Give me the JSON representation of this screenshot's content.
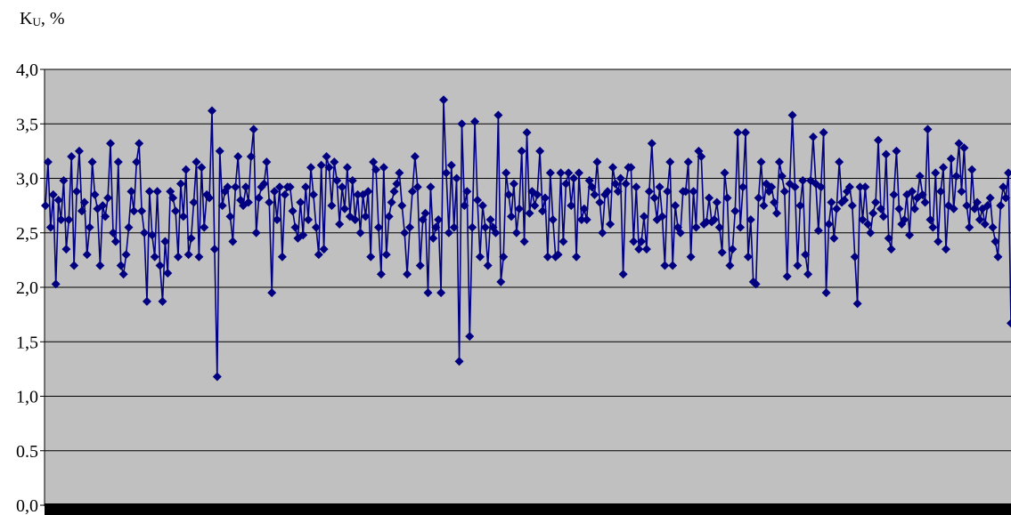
{
  "chart_data": {
    "type": "line",
    "ylabel": "K",
    "ylabel_subscript": "U",
    "ylabel_suffix": ", %",
    "ylim": [
      0,
      4
    ],
    "ytick_labels": [
      "0,0",
      "0.5",
      "1,0",
      "1,5",
      "2,0",
      "2,5",
      "3,0",
      "3,5",
      "4,0"
    ],
    "ytick_values": [
      0,
      0.5,
      1,
      1.5,
      2,
      2.5,
      3,
      3.5,
      4
    ],
    "grid": true,
    "plot_background": "#c0c0c0",
    "series_color": "#000080",
    "baseline_color": "#000000",
    "series": [
      {
        "values": [
          2.75,
          3.15,
          2.55,
          2.85,
          2.03,
          2.8,
          2.62,
          2.98,
          2.35,
          2.62,
          3.2,
          2.2,
          2.88,
          3.25,
          2.7,
          2.78,
          2.3,
          2.55,
          3.15,
          2.85,
          2.72,
          2.2,
          2.75,
          2.65,
          2.82,
          3.32,
          2.5,
          2.42,
          3.15,
          2.2,
          2.12,
          2.3,
          2.55,
          2.88,
          2.7,
          3.15,
          3.32,
          2.7,
          2.5,
          1.87,
          2.88,
          2.48,
          2.28,
          2.88,
          2.2,
          1.87,
          2.42,
          2.13,
          2.88,
          2.82,
          2.7,
          2.28,
          2.95,
          2.65,
          3.08,
          2.3,
          2.45,
          2.78,
          3.15,
          2.28,
          3.1,
          2.55,
          2.85,
          2.82,
          3.62,
          2.35,
          1.18,
          3.25,
          2.75,
          2.88,
          2.92,
          2.65,
          2.42,
          2.92,
          3.2,
          2.8,
          2.75,
          2.92,
          2.78,
          3.2,
          3.45,
          2.5,
          2.82,
          2.92,
          2.95,
          3.15,
          2.78,
          1.95,
          2.88,
          2.62,
          2.92,
          2.28,
          2.85,
          2.92,
          2.92,
          2.7,
          2.55,
          2.45,
          2.78,
          2.48,
          2.92,
          2.62,
          3.1,
          2.85,
          2.55,
          2.3,
          3.12,
          2.35,
          3.2,
          3.1,
          2.75,
          3.15,
          2.98,
          2.58,
          2.92,
          2.72,
          3.1,
          2.65,
          2.98,
          2.62,
          2.85,
          2.5,
          2.85,
          2.65,
          2.88,
          2.28,
          3.15,
          3.08,
          2.55,
          2.12,
          3.1,
          2.3,
          2.65,
          2.78,
          2.88,
          2.95,
          3.05,
          2.75,
          2.5,
          2.12,
          2.55,
          2.88,
          3.2,
          2.92,
          2.2,
          2.62,
          2.68,
          1.95,
          2.92,
          2.45,
          2.55,
          2.62,
          1.95,
          3.72,
          3.05,
          2.5,
          3.12,
          2.55,
          3.0,
          1.32,
          3.5,
          2.75,
          2.88,
          1.55,
          2.55,
          3.52,
          2.8,
          2.28,
          2.75,
          2.55,
          2.2,
          2.62,
          2.55,
          2.5,
          3.58,
          2.05,
          2.28,
          3.05,
          2.85,
          2.65,
          2.95,
          2.5,
          2.72,
          3.25,
          2.42,
          3.42,
          2.68,
          2.88,
          2.75,
          2.85,
          3.25,
          2.7,
          2.82,
          2.28,
          3.05,
          2.62,
          2.28,
          2.3,
          3.05,
          2.42,
          2.95,
          3.05,
          2.75,
          3.0,
          2.28,
          3.05,
          2.62,
          2.72,
          2.62,
          2.98,
          2.92,
          2.85,
          3.15,
          2.78,
          2.5,
          2.85,
          2.88,
          2.58,
          3.1,
          2.95,
          2.88,
          3.0,
          2.12,
          2.95,
          3.1,
          3.1,
          2.42,
          2.92,
          2.35,
          2.42,
          2.65,
          2.35,
          2.88,
          3.32,
          2.82,
          2.62,
          2.92,
          2.65,
          2.2,
          2.88,
          3.15,
          2.2,
          2.75,
          2.55,
          2.5,
          2.88,
          2.88,
          3.15,
          2.28,
          2.88,
          2.55,
          3.25,
          3.2,
          2.58,
          2.6,
          2.82,
          2.6,
          2.62,
          2.78,
          2.55,
          2.32,
          3.05,
          2.82,
          2.2,
          2.35,
          2.7,
          3.42,
          2.55,
          2.92,
          3.42,
          2.28,
          2.62,
          2.05,
          2.03,
          2.82,
          3.15,
          2.75,
          2.95,
          2.88,
          2.92,
          2.78,
          2.68,
          3.15,
          3.02,
          2.88,
          2.1,
          2.95,
          3.58,
          2.92,
          2.2,
          2.75,
          2.98,
          2.3,
          2.12,
          2.98,
          3.38,
          2.95,
          2.52,
          2.92,
          3.42,
          1.95,
          2.58,
          2.78,
          2.45,
          2.72,
          3.15,
          2.78,
          2.8,
          2.88,
          2.92,
          2.75,
          2.28,
          1.85,
          2.92,
          2.62,
          2.92,
          2.58,
          2.5,
          2.68,
          2.78,
          3.35,
          2.72,
          2.65,
          3.22,
          2.45,
          2.35,
          2.85,
          3.25,
          2.72,
          2.58,
          2.62,
          2.85,
          2.48,
          2.88,
          2.72,
          2.82,
          3.02,
          2.85,
          2.78,
          3.45,
          2.62,
          2.55,
          3.05,
          2.42,
          2.88,
          3.1,
          2.35,
          2.75,
          3.18,
          2.72,
          3.02,
          3.32,
          2.88,
          3.28,
          2.75,
          2.55,
          3.08,
          2.72,
          2.78,
          2.62,
          2.72,
          2.58,
          2.75,
          2.82,
          2.55,
          2.42,
          2.28,
          2.75,
          2.92,
          2.82,
          3.05,
          1.67
        ]
      }
    ]
  }
}
